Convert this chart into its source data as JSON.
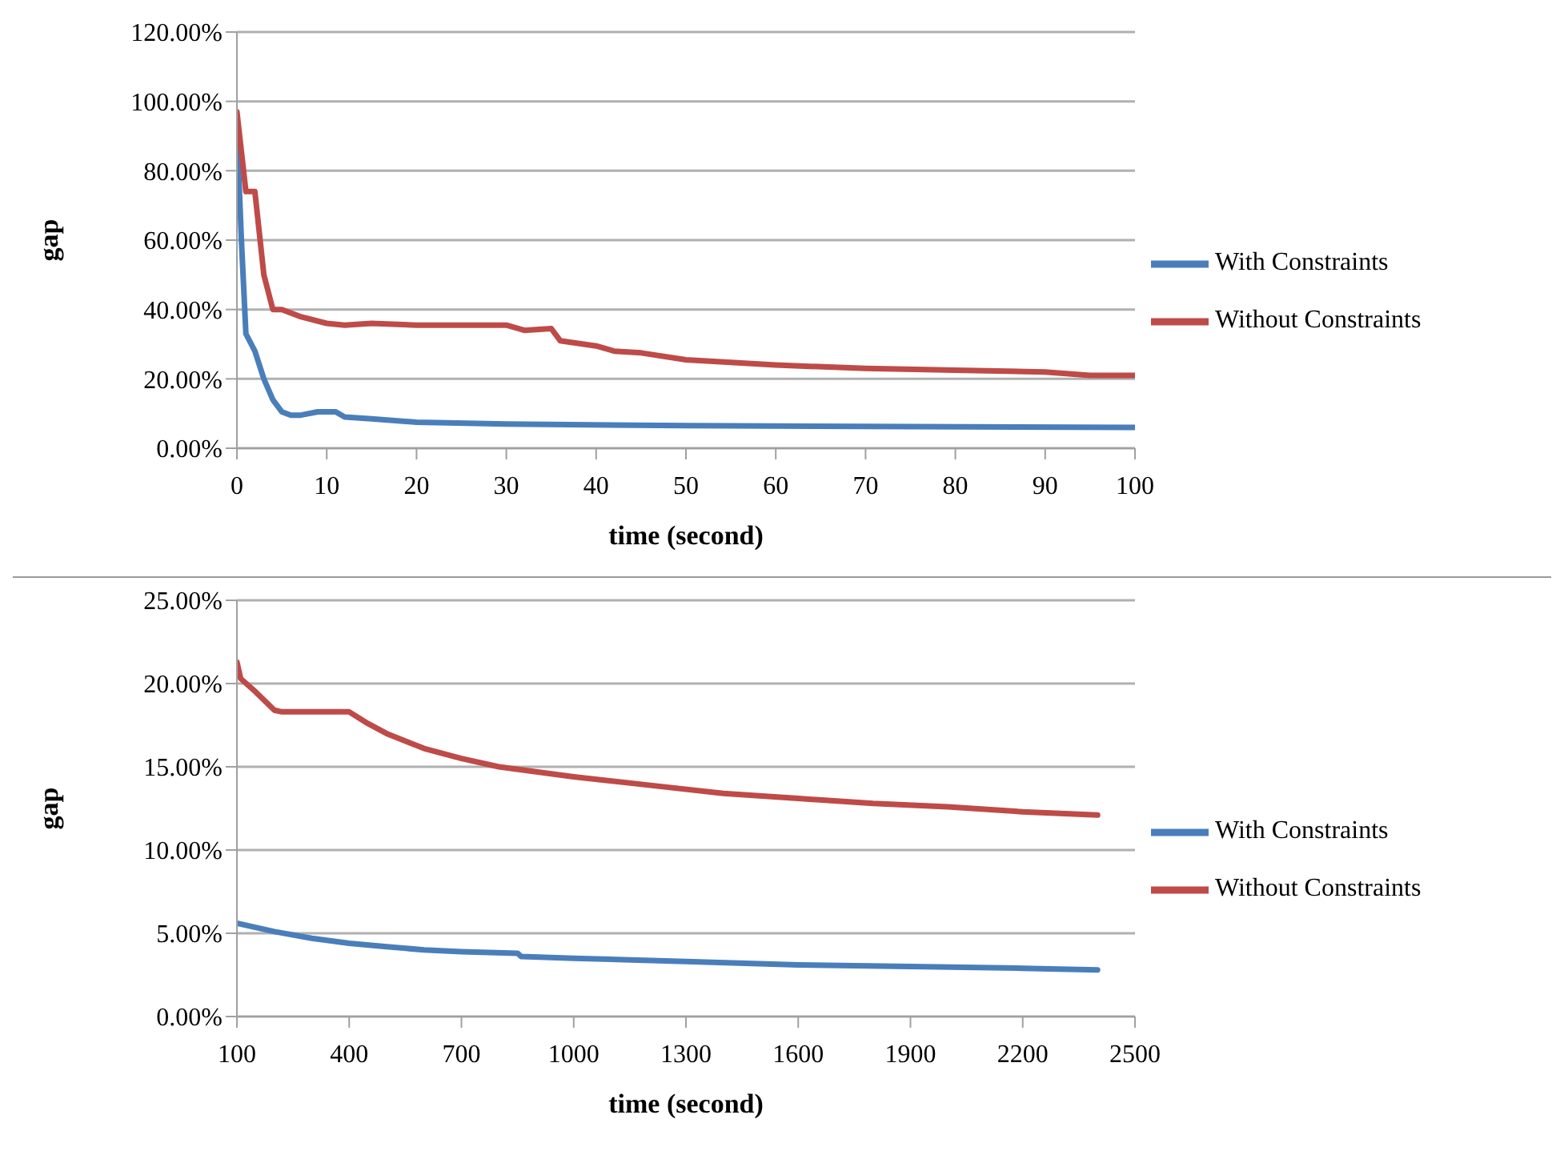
{
  "chart_data": [
    {
      "type": "line",
      "xlabel": "time (second)",
      "ylabel": "gap",
      "xlim": [
        0,
        100
      ],
      "xticks": [
        0,
        10,
        20,
        30,
        40,
        50,
        60,
        70,
        80,
        90,
        100
      ],
      "ylim": [
        0,
        120
      ],
      "yticks": [
        {
          "value": 0,
          "label": "0.00%"
        },
        {
          "value": 20,
          "label": "20.00%"
        },
        {
          "value": 40,
          "label": "40.00%"
        },
        {
          "value": 60,
          "label": "60.00%"
        },
        {
          "value": 80,
          "label": "80.00%"
        },
        {
          "value": 100,
          "label": "100.00%"
        },
        {
          "value": 120,
          "label": "120.00%"
        }
      ],
      "grid": "y",
      "legend": "right",
      "marker": "none",
      "line_style": "solid",
      "series": [
        {
          "name": "With Constraints",
          "color": "#4a7ebb",
          "x": [
            0,
            0.5,
            1,
            2,
            3,
            4,
            5,
            6,
            7,
            9,
            11,
            12,
            15,
            20,
            30,
            50,
            100
          ],
          "values": [
            92,
            60,
            33,
            28,
            20,
            14,
            10.5,
            9.5,
            9.5,
            10.5,
            10.5,
            9,
            8.5,
            7.5,
            7,
            6.5,
            6
          ]
        },
        {
          "name": "Without Constraints",
          "color": "#be4b48",
          "x": [
            0,
            1,
            2,
            3,
            4,
            5,
            7,
            10,
            12,
            15,
            20,
            30,
            32,
            35,
            36,
            40,
            42,
            45,
            50,
            60,
            70,
            80,
            90,
            95,
            100
          ],
          "values": [
            97,
            74,
            74,
            50,
            40,
            40,
            38,
            36,
            35.5,
            36,
            35.5,
            35.5,
            34,
            34.5,
            31,
            29.5,
            28,
            27.5,
            25.5,
            24,
            23,
            22.5,
            22,
            21,
            21
          ]
        }
      ]
    },
    {
      "type": "line",
      "xlabel": "time (second)",
      "ylabel": "gap",
      "xlim": [
        100,
        2500
      ],
      "xticks": [
        100,
        400,
        700,
        1000,
        1300,
        1600,
        1900,
        2200,
        2500
      ],
      "ylim": [
        0,
        25
      ],
      "yticks": [
        {
          "value": 0,
          "label": "0.00%"
        },
        {
          "value": 5,
          "label": "5.00%"
        },
        {
          "value": 10,
          "label": "10.00%"
        },
        {
          "value": 15,
          "label": "15.00%"
        },
        {
          "value": 20,
          "label": "20.00%"
        },
        {
          "value": 25,
          "label": "25.00%"
        }
      ],
      "grid": "y",
      "legend": "right",
      "marker": "none",
      "line_style": "solid",
      "series": [
        {
          "name": "With Constraints",
          "color": "#4a7ebb",
          "x": [
            100,
            200,
            300,
            400,
            500,
            600,
            700,
            850,
            860,
            1000,
            1300,
            1600,
            1900,
            2200,
            2400
          ],
          "values": [
            5.6,
            5.1,
            4.7,
            4.4,
            4.2,
            4.0,
            3.9,
            3.8,
            3.6,
            3.5,
            3.3,
            3.1,
            3.0,
            2.9,
            2.8
          ]
        },
        {
          "name": "Without Constraints",
          "color": "#be4b48",
          "x": [
            100,
            110,
            150,
            200,
            220,
            400,
            450,
            500,
            600,
            700,
            800,
            1000,
            1200,
            1400,
            1600,
            1800,
            2000,
            2200,
            2400
          ],
          "values": [
            21.3,
            20.3,
            19.5,
            18.4,
            18.3,
            18.3,
            17.6,
            17.0,
            16.1,
            15.5,
            15.0,
            14.4,
            13.9,
            13.4,
            13.1,
            12.8,
            12.6,
            12.3,
            12.1
          ]
        }
      ]
    }
  ]
}
